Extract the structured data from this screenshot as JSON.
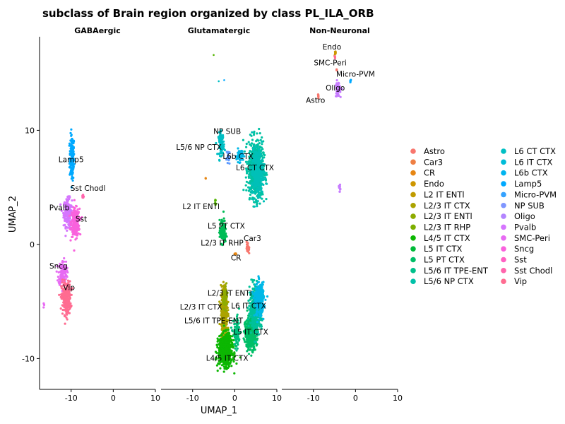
{
  "chart_data": {
    "type": "scatter",
    "title": "subclass of Brain region organized by class PL_ILA_ORB",
    "xlabel": "UMAP_1",
    "ylabel": "UMAP_2",
    "xlim": [
      -17.5,
      10
    ],
    "ylim": [
      -12.7,
      18.2
    ],
    "xticks": [
      -10,
      0,
      10
    ],
    "yticks": [
      -10,
      0,
      10
    ],
    "grid": false,
    "legend_position": "right",
    "facets": [
      {
        "name": "GABAergic",
        "clusters": [
          {
            "label": "Lamp5",
            "color": "#00A9FF",
            "x": -9.8,
            "y": 7.6,
            "sx": 0.5,
            "sy": 1.8,
            "n": 170
          },
          {
            "label": "Pvalb",
            "color": "#D575FE",
            "x": -10.8,
            "y": 2.8,
            "sx": 0.9,
            "sy": 1.1,
            "n": 190
          },
          {
            "label": "Sst",
            "color": "#F962DD",
            "x": -9.0,
            "y": 1.9,
            "sx": 0.9,
            "sy": 1.1,
            "n": 260
          },
          {
            "label": "Sst Chodl",
            "color": "#FF65AC",
            "x": -7.2,
            "y": 4.2,
            "sx": 0.2,
            "sy": 0.2,
            "n": 12
          },
          {
            "label": "Sncg",
            "color": "#E76BF3",
            "x": -12.0,
            "y": -2.5,
            "sx": 0.9,
            "sy": 1.0,
            "n": 130
          },
          {
            "label": "Vip",
            "color": "#FF6C91",
            "x": -11.2,
            "y": -4.7,
            "sx": 1.0,
            "sy": 1.3,
            "n": 260
          },
          {
            "label": "Sncg",
            "color": "#E76BF3",
            "x": -16.5,
            "y": -5.3,
            "sx": 0.1,
            "sy": 0.15,
            "n": 4
          }
        ],
        "labels": [
          {
            "text": "Lamp5",
            "x": -10.0,
            "y": 7.2
          },
          {
            "text": "Sst Chodl",
            "x": -6.0,
            "y": 4.7
          },
          {
            "text": "Pvalb",
            "x": -12.8,
            "y": 3.0
          },
          {
            "text": "Sst",
            "x": -7.6,
            "y": 2.0
          },
          {
            "text": "Sncg",
            "x": -13.0,
            "y": -2.1
          },
          {
            "text": "Vip",
            "x": -10.5,
            "y": -4.0
          }
        ]
      },
      {
        "name": "Glutamatergic",
        "clusters": [
          {
            "label": "NP SUB",
            "color": "#619CFF",
            "x": -1.5,
            "y": 7.6,
            "sx": 0.4,
            "sy": 0.6,
            "n": 25
          },
          {
            "label": "L5/6 NP CTX",
            "color": "#00BFC4",
            "x": -3.2,
            "y": 8.8,
            "sx": 0.6,
            "sy": 0.9,
            "n": 90
          },
          {
            "label": "L6b CTX",
            "color": "#00B8E7",
            "x": 1.2,
            "y": 7.8,
            "sx": 0.7,
            "sy": 0.5,
            "n": 60
          },
          {
            "label": "L6 CT CTX",
            "color": "#00C1A3",
            "x": 5.0,
            "y": 6.6,
            "sx": 1.6,
            "sy": 2.2,
            "n": 700
          },
          {
            "label": "L6 CT CTX",
            "color": "#00C0B8",
            "x": 5.4,
            "y": 6.3,
            "sx": 1.2,
            "sy": 1.8,
            "n": 300
          },
          {
            "label": "L2 IT ENTl",
            "color": "#E68613",
            "x": -7.0,
            "y": 5.8,
            "sx": 0.1,
            "sy": 0.1,
            "n": 2
          },
          {
            "label": "L2 IT ENTl",
            "color": "#53B400",
            "x": -4.6,
            "y": 3.7,
            "sx": 0.2,
            "sy": 0.3,
            "n": 6
          },
          {
            "label": "L5 PT CTX",
            "color": "#00BC56",
            "x": -2.8,
            "y": 1.1,
            "sx": 0.7,
            "sy": 0.9,
            "n": 140
          },
          {
            "label": "Car3",
            "color": "#F8766D",
            "x": 3.1,
            "y": -0.3,
            "sx": 0.25,
            "sy": 0.5,
            "n": 25
          },
          {
            "label": "CR",
            "color": "#E68613",
            "x": 0.2,
            "y": -0.8,
            "sx": 0.25,
            "sy": 0.1,
            "n": 6
          },
          {
            "label": "L2/3 IT CTX",
            "color": "#ABA300",
            "x": -2.5,
            "y": -6.0,
            "sx": 0.7,
            "sy": 2.0,
            "n": 380
          },
          {
            "label": "L2/3 IT ENTl",
            "color": "#8EAB00",
            "x": -2.2,
            "y": -4.6,
            "sx": 0.5,
            "sy": 0.8,
            "n": 60
          },
          {
            "label": "L4/5 IT CTX",
            "color": "#0CB702",
            "x": -2.2,
            "y": -9.3,
            "sx": 1.5,
            "sy": 1.2,
            "n": 700
          },
          {
            "label": "L5 IT CTX",
            "color": "#00BE67",
            "x": 3.8,
            "y": -7.8,
            "sx": 1.2,
            "sy": 1.2,
            "n": 500
          },
          {
            "label": "L6 IT CTX",
            "color": "#00C19A",
            "x": 5.0,
            "y": -5.6,
            "sx": 1.3,
            "sy": 1.6,
            "n": 500
          },
          {
            "label": "L6 IT CTX",
            "color": "#00B8E7",
            "x": 5.8,
            "y": -4.8,
            "sx": 1.0,
            "sy": 1.3,
            "n": 250
          },
          {
            "label": "L5/6 IT TPE-ENT",
            "color": "#00BF7D",
            "x": 0.5,
            "y": -7.8,
            "sx": 0.8,
            "sy": 1.2,
            "n": 100
          }
        ],
        "labels": [
          {
            "text": "NP SUB",
            "x": -1.8,
            "y": 9.7
          },
          {
            "text": "L5/6 NP CTX",
            "x": -8.5,
            "y": 8.3
          },
          {
            "text": "L6b CTX",
            "x": 0.8,
            "y": 7.5
          },
          {
            "text": "L6 CT CTX",
            "x": 4.8,
            "y": 6.5
          },
          {
            "text": "L2 IT ENTl",
            "x": -8.0,
            "y": 3.1
          },
          {
            "text": "L5 PT CTX",
            "x": -2.0,
            "y": 1.4
          },
          {
            "text": "Car3",
            "x": 4.2,
            "y": 0.3
          },
          {
            "text": "L2/3 IT RHP",
            "x": -3.0,
            "y": -0.1
          },
          {
            "text": "CR",
            "x": 0.3,
            "y": -1.4
          },
          {
            "text": "L2/3 IT ENTl",
            "x": -1.2,
            "y": -4.5
          },
          {
            "text": "L6 IT CTX",
            "x": 3.3,
            "y": -5.6
          },
          {
            "text": "L2/3 IT CTX",
            "x": -8.0,
            "y": -5.7
          },
          {
            "text": "L5/6 IT TPE-ENT",
            "x": -5.0,
            "y": -6.9
          },
          {
            "text": "L5 IT CTX",
            "x": 3.8,
            "y": -7.9
          },
          {
            "text": "L4/5 IT CTX",
            "x": -1.8,
            "y": -10.2
          }
        ],
        "specks": [
          {
            "color": "#53B400",
            "x": -5.0,
            "y": 16.6
          },
          {
            "color": "#00A9FF",
            "x": -2.5,
            "y": 14.4
          },
          {
            "color": "#00BFC4",
            "x": -3.8,
            "y": 14.3
          }
        ]
      },
      {
        "name": "Non-Neuronal",
        "clusters": [
          {
            "label": "Endo",
            "color": "#CD9600",
            "x": -4.8,
            "y": 16.8,
            "sx": 0.12,
            "sy": 0.25,
            "n": 8
          },
          {
            "label": "Endo",
            "color": "#FF6C91",
            "x": -4.9,
            "y": 16.4,
            "sx": 0.08,
            "sy": 0.2,
            "n": 6
          },
          {
            "label": "SMC-Peri",
            "color": "#F8766D",
            "x": -4.5,
            "y": 15.3,
            "sx": 0.1,
            "sy": 0.1,
            "n": 3
          },
          {
            "label": "Micro-PVM",
            "color": "#00A9FF",
            "x": -1.2,
            "y": 14.3,
            "sx": 0.1,
            "sy": 0.15,
            "n": 5
          },
          {
            "label": "Oligo",
            "color": "#C77CFF",
            "x": -4.2,
            "y": 13.6,
            "sx": 0.5,
            "sy": 0.6,
            "n": 60
          },
          {
            "label": "Astro",
            "color": "#F8766D",
            "x": -8.8,
            "y": 13.0,
            "sx": 0.15,
            "sy": 0.2,
            "n": 8
          },
          {
            "label": "Oligo",
            "color": "#C77CFF",
            "x": -3.7,
            "y": 4.9,
            "sx": 0.2,
            "sy": 0.25,
            "n": 12
          }
        ],
        "labels": [
          {
            "text": "Endo",
            "x": -5.6,
            "y": 17.1
          },
          {
            "text": "SMC-Peri",
            "x": -6.0,
            "y": 15.7
          },
          {
            "text": "Micro-PVM",
            "x": 0.0,
            "y": 14.7
          },
          {
            "text": "Oligo",
            "x": -4.8,
            "y": 13.5
          },
          {
            "text": "Astro",
            "x": -9.5,
            "y": 12.4
          }
        ]
      }
    ],
    "legend": [
      {
        "name": "Astro",
        "color": "#F8766D"
      },
      {
        "name": "Car3",
        "color": "#EE7F43"
      },
      {
        "name": "CR",
        "color": "#E68613"
      },
      {
        "name": "Endo",
        "color": "#CD9600"
      },
      {
        "name": "L2 IT ENTl",
        "color": "#C09B00"
      },
      {
        "name": "L2/3 IT CTX",
        "color": "#ABA300"
      },
      {
        "name": "L2/3 IT ENTl",
        "color": "#8EAB00"
      },
      {
        "name": "L2/3 IT RHP",
        "color": "#7CAE00"
      },
      {
        "name": "L4/5 IT CTX",
        "color": "#0CB702"
      },
      {
        "name": "L5 IT CTX",
        "color": "#00BA38"
      },
      {
        "name": "L5 PT CTX",
        "color": "#00BE67"
      },
      {
        "name": "L5/6 IT TPE-ENT",
        "color": "#00C08B"
      },
      {
        "name": "L5/6 NP CTX",
        "color": "#00C1A9"
      },
      {
        "name": "L6 CT CTX",
        "color": "#00BFC4"
      },
      {
        "name": "L6 IT CTX",
        "color": "#00BCD8"
      },
      {
        "name": "L6b CTX",
        "color": "#00B4EF"
      },
      {
        "name": "Lamp5",
        "color": "#00A9FF"
      },
      {
        "name": "Micro-PVM",
        "color": "#35A2FF"
      },
      {
        "name": "NP SUB",
        "color": "#7F96FF"
      },
      {
        "name": "Oligo",
        "color": "#B385FF"
      },
      {
        "name": "Pvalb",
        "color": "#D575FE"
      },
      {
        "name": "SMC-Peri",
        "color": "#E76BF3"
      },
      {
        "name": "Sncg",
        "color": "#F962DD"
      },
      {
        "name": "Sst",
        "color": "#FF61C3"
      },
      {
        "name": "Sst Chodl",
        "color": "#FF65AC"
      },
      {
        "name": "Vip",
        "color": "#FF6C91"
      }
    ]
  }
}
